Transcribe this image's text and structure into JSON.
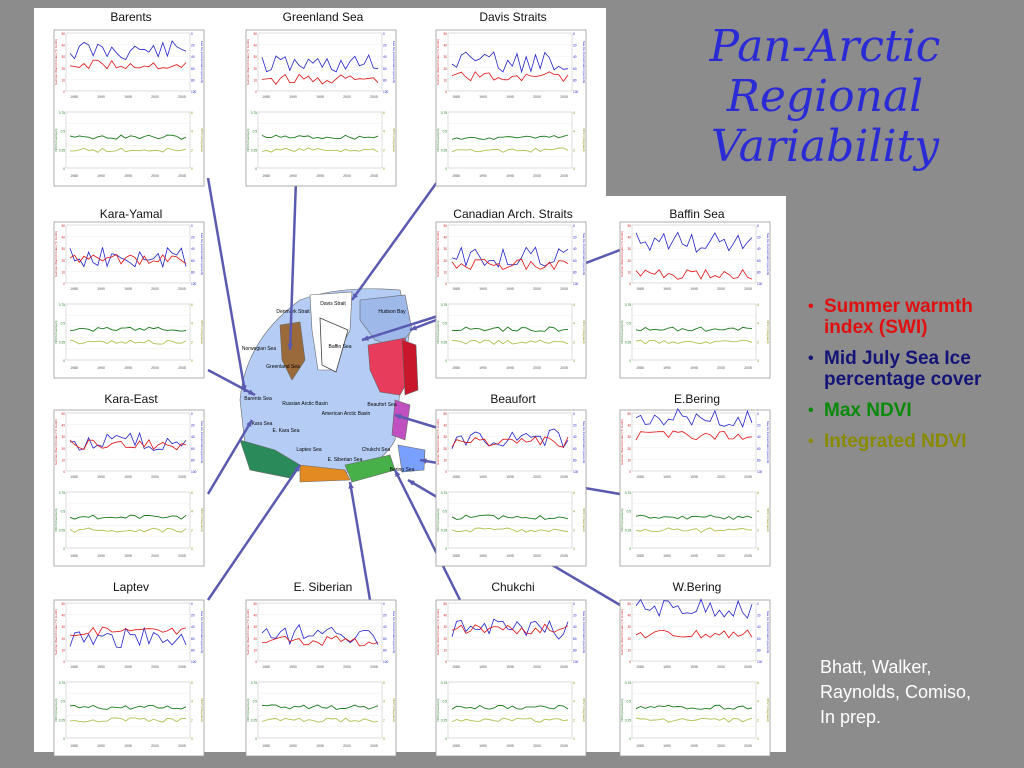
{
  "title_lines": [
    "Pan-Arctic",
    "Regional",
    "Variability"
  ],
  "legend": [
    {
      "label": "Summer warmth index (SWI)",
      "color": "#e01010"
    },
    {
      "label": "Mid July Sea Ice percentage cover",
      "color": "#141478"
    },
    {
      "label": "Max NDVI",
      "color": "#0a8a0a"
    },
    {
      "label": "Integrated NDVI",
      "color": "#8a8a00"
    }
  ],
  "credit_lines": [
    "Bhatt, Walker,",
    "Raynolds, Comiso,",
    "In prep."
  ],
  "regions": [
    "Barents",
    "Greenland Sea",
    "Davis Straits",
    "Kara-Yamal",
    "Canadian Arch. Straits",
    "Baffin Sea",
    "Kara-East",
    "Beaufort",
    "E.Bering",
    "Laptev",
    "E. Siberian",
    "Chukchi",
    "W.Bering"
  ],
  "axis_labels": {
    "swi": "Summer Warmth Index (°C month)",
    "ice": "Sea Ice Concentration (percent)",
    "ndvi": "NDVI (maximum)",
    "indvi": "NDVI (integrated)"
  },
  "tick_labels": {
    "years": [
      "1985",
      "1990",
      "1995",
      "2000",
      "2005"
    ],
    "swi": [
      "50",
      "40",
      "30",
      "20",
      "10",
      "0"
    ],
    "ice": [
      "0",
      "20",
      "40",
      "60",
      "80",
      "100"
    ],
    "ndvi": [
      "0.75",
      "0.5",
      "0.25",
      "0"
    ],
    "indvi": [
      "6",
      "4",
      "2",
      "0"
    ]
  },
  "map_labels": [
    "Davis Strait",
    "Hudson Bay",
    "Norwegian Sea",
    "Greenland Sea",
    "Barents Sea",
    "Baffin Sea",
    "Russian Arctic Basin",
    "American Arctic Basin",
    "Beaufort Sea",
    "Kara Sea",
    "E. Kara Sea",
    "Laptev Sea",
    "E. Siberian Sea",
    "Chukchi Sea",
    "Bering Sea",
    "Denmark Strait"
  ],
  "colors": {
    "background": "#8c8c8c",
    "title": "#2b2bd6",
    "ice_line": "#2323c8",
    "swi_line": "#e01010",
    "ndvi_line": "#1a7a1a",
    "indvi_line": "#b0c050",
    "arrow": "#5a5ab0"
  }
}
